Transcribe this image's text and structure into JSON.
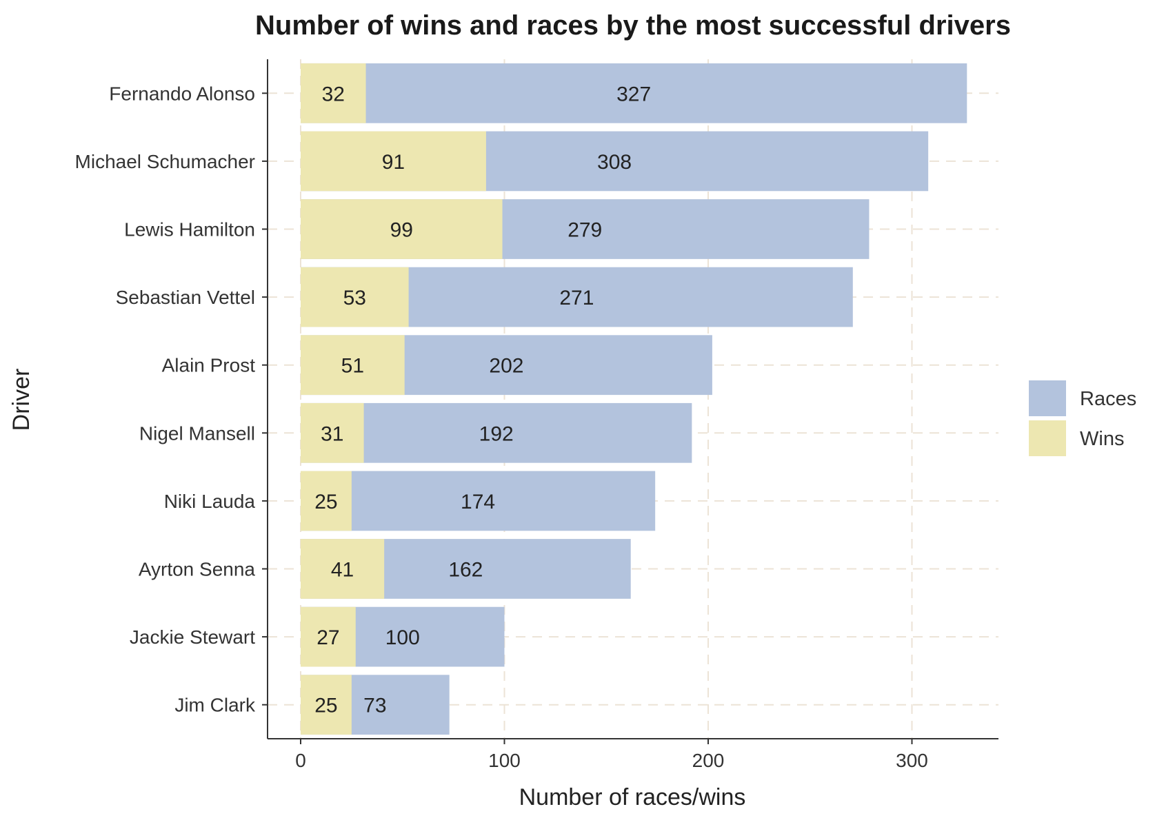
{
  "chart_data": {
    "type": "bar",
    "orientation": "horizontal",
    "stacking": "overlay",
    "title": "Number of wins and races by the most successful drivers",
    "xlabel": "Number of races/wins",
    "ylabel": "Driver",
    "xlim": [
      0,
      340
    ],
    "xticks": [
      0,
      100,
      200,
      300
    ],
    "grid": true,
    "legend_position": "right",
    "categories": [
      "Fernando Alonso",
      "Michael Schumacher",
      "Lewis Hamilton",
      "Sebastian Vettel",
      "Alain Prost",
      "Nigel Mansell",
      "Niki Lauda",
      "Ayrton Senna",
      "Jackie Stewart",
      "Jim Clark"
    ],
    "series": [
      {
        "name": "Races",
        "color": "#b3c3dd",
        "values": [
          327,
          308,
          279,
          271,
          202,
          192,
          174,
          162,
          100,
          73
        ]
      },
      {
        "name": "Wins",
        "color": "#ede7b1",
        "values": [
          32,
          91,
          99,
          53,
          51,
          31,
          25,
          41,
          27,
          25
        ]
      }
    ]
  }
}
